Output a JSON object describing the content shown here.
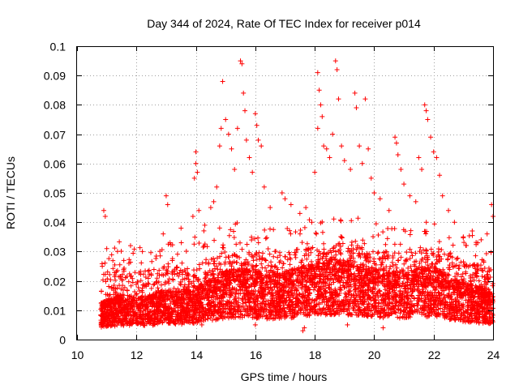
{
  "chart_data": {
    "type": "scatter",
    "title": "Day 344 of 2024, Rate Of TEC Index for receiver p014",
    "xlabel": "GPS time / hours",
    "ylabel": "ROTI / TECUs",
    "xlim": [
      10,
      24
    ],
    "ylim": [
      0,
      0.1
    ],
    "x_ticks": [
      10,
      12,
      14,
      16,
      18,
      20,
      22,
      24
    ],
    "y_ticks": [
      0,
      0.01,
      0.02,
      0.03,
      0.04,
      0.05,
      0.06,
      0.07,
      0.08,
      0.09,
      0.1
    ],
    "x_tick_labels": [
      "10",
      "12",
      "14",
      "16",
      "18",
      "20",
      "22",
      "24"
    ],
    "y_tick_labels": [
      "0",
      "0.01",
      "0.02",
      "0.03",
      "0.04",
      "0.05",
      "0.06",
      "0.07",
      "0.08",
      "0.09",
      "0.1"
    ],
    "grid": true,
    "marker": "+",
    "color": "#ff0000",
    "series": [
      {
        "name": "ROTI",
        "note": "dense scatter; representative points read from figure",
        "points": [
          [
            10.9,
            0.044
          ],
          [
            10.95,
            0.042
          ],
          [
            11.0,
            0.031
          ],
          [
            10.85,
            0.025
          ],
          [
            11.8,
            0.032
          ],
          [
            12.2,
            0.03
          ],
          [
            13.0,
            0.049
          ],
          [
            13.05,
            0.046
          ],
          [
            12.9,
            0.036
          ],
          [
            13.5,
            0.038
          ],
          [
            13.9,
            0.042
          ],
          [
            14.0,
            0.064
          ],
          [
            14.0,
            0.06
          ],
          [
            14.05,
            0.057
          ],
          [
            13.95,
            0.055
          ],
          [
            14.1,
            0.044
          ],
          [
            14.3,
            0.039
          ],
          [
            14.5,
            0.045
          ],
          [
            14.6,
            0.047
          ],
          [
            14.7,
            0.052
          ],
          [
            14.8,
            0.066
          ],
          [
            14.85,
            0.072
          ],
          [
            14.9,
            0.088
          ],
          [
            15.0,
            0.075
          ],
          [
            15.1,
            0.07
          ],
          [
            15.2,
            0.065
          ],
          [
            15.3,
            0.058
          ],
          [
            15.5,
            0.095
          ],
          [
            15.55,
            0.094
          ],
          [
            15.6,
            0.084
          ],
          [
            15.65,
            0.078
          ],
          [
            15.4,
            0.072
          ],
          [
            15.7,
            0.068
          ],
          [
            15.8,
            0.062
          ],
          [
            16.0,
            0.077
          ],
          [
            16.05,
            0.073
          ],
          [
            16.1,
            0.068
          ],
          [
            16.2,
            0.066
          ],
          [
            15.9,
            0.057
          ],
          [
            16.3,
            0.052
          ],
          [
            16.5,
            0.045
          ],
          [
            16.9,
            0.05
          ],
          [
            17.0,
            0.048
          ],
          [
            17.2,
            0.046
          ],
          [
            17.5,
            0.043
          ],
          [
            17.7,
            0.045
          ],
          [
            17.9,
            0.04
          ],
          [
            18.0,
            0.057
          ],
          [
            18.1,
            0.091
          ],
          [
            18.15,
            0.085
          ],
          [
            18.2,
            0.08
          ],
          [
            18.25,
            0.076
          ],
          [
            18.3,
            0.066
          ],
          [
            18.1,
            0.072
          ],
          [
            18.4,
            0.065
          ],
          [
            18.5,
            0.062
          ],
          [
            18.6,
            0.07
          ],
          [
            18.7,
            0.095
          ],
          [
            18.75,
            0.092
          ],
          [
            18.8,
            0.082
          ],
          [
            18.9,
            0.066
          ],
          [
            19.0,
            0.061
          ],
          [
            19.2,
            0.058
          ],
          [
            19.35,
            0.084
          ],
          [
            19.4,
            0.079
          ],
          [
            19.5,
            0.066
          ],
          [
            19.6,
            0.06
          ],
          [
            19.7,
            0.082
          ],
          [
            19.8,
            0.065
          ],
          [
            19.9,
            0.055
          ],
          [
            20.0,
            0.05
          ],
          [
            20.2,
            0.048
          ],
          [
            20.5,
            0.044
          ],
          [
            20.7,
            0.069
          ],
          [
            20.75,
            0.067
          ],
          [
            20.8,
            0.063
          ],
          [
            20.9,
            0.058
          ],
          [
            21.0,
            0.053
          ],
          [
            21.2,
            0.049
          ],
          [
            21.4,
            0.047
          ],
          [
            21.5,
            0.062
          ],
          [
            21.6,
            0.058
          ],
          [
            21.7,
            0.08
          ],
          [
            21.75,
            0.078
          ],
          [
            21.8,
            0.075
          ],
          [
            21.9,
            0.069
          ],
          [
            22.0,
            0.064
          ],
          [
            22.1,
            0.062
          ],
          [
            22.2,
            0.056
          ],
          [
            22.3,
            0.049
          ],
          [
            22.5,
            0.044
          ],
          [
            22.7,
            0.04
          ],
          [
            23.0,
            0.035
          ],
          [
            23.3,
            0.037
          ],
          [
            23.6,
            0.034
          ],
          [
            23.8,
            0.036
          ],
          [
            23.95,
            0.046
          ],
          [
            24.0,
            0.042
          ],
          [
            17.6,
            0.003
          ],
          [
            17.65,
            0.004
          ],
          [
            19.1,
            0.005
          ],
          [
            20.3,
            0.004
          ],
          [
            16.0,
            0.005
          ],
          [
            14.2,
            0.005
          ]
        ],
        "baseline": [
          [
            10.8,
            0.01
          ],
          [
            11.5,
            0.012
          ],
          [
            12.0,
            0.011
          ],
          [
            12.5,
            0.012
          ],
          [
            13.0,
            0.013
          ],
          [
            13.5,
            0.013
          ],
          [
            14.0,
            0.014
          ],
          [
            14.5,
            0.016
          ],
          [
            15.0,
            0.018
          ],
          [
            15.5,
            0.019
          ],
          [
            16.0,
            0.018
          ],
          [
            16.5,
            0.017
          ],
          [
            17.0,
            0.018
          ],
          [
            17.5,
            0.019
          ],
          [
            18.0,
            0.02
          ],
          [
            18.5,
            0.021
          ],
          [
            19.0,
            0.021
          ],
          [
            19.5,
            0.02
          ],
          [
            20.0,
            0.019
          ],
          [
            20.5,
            0.018
          ],
          [
            21.0,
            0.018
          ],
          [
            21.5,
            0.019
          ],
          [
            22.0,
            0.019
          ],
          [
            22.5,
            0.017
          ],
          [
            23.0,
            0.015
          ],
          [
            23.5,
            0.014
          ],
          [
            24.0,
            0.013
          ]
        ]
      }
    ]
  }
}
